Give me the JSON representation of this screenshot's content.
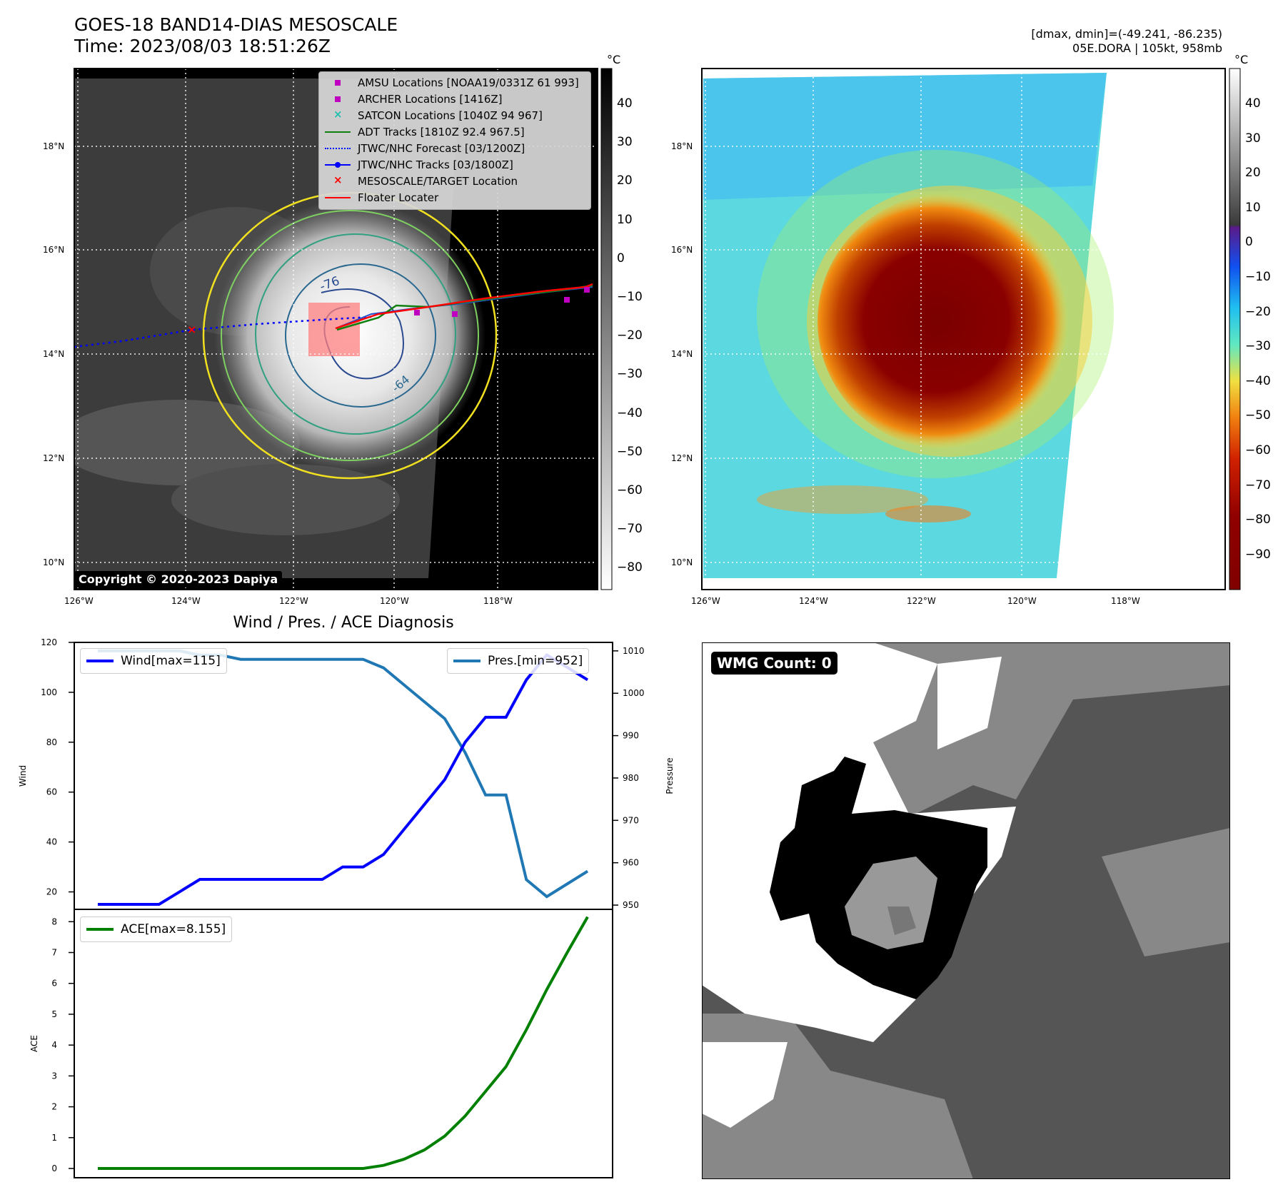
{
  "header": {
    "title_line1": "GOES-18 BAND14-DIAS MESOSCALE",
    "title_line2": "Time: 2023/08/03 18:51:26Z",
    "info_line1": "[dmax, dmin]=(-49.241, -86.235)",
    "info_line2": "05E.DORA | 105kt, 958mb"
  },
  "map_common": {
    "lon_ticks": [
      "126°W",
      "124°W",
      "122°W",
      "120°W",
      "118°W"
    ],
    "lat_ticks": [
      "18°N",
      "16°N",
      "14°N",
      "12°N",
      "10°N"
    ],
    "colorbar_unit": "°C"
  },
  "map_left": {
    "colorbar_ticks": [
      "40",
      "30",
      "20",
      "10",
      "0",
      "−10",
      "−20",
      "−30",
      "−40",
      "−50",
      "−60",
      "−70",
      "−80"
    ],
    "contour_labels": [
      "-76",
      "-64"
    ],
    "copyright": "Copyright © 2020-2023 Dapiya",
    "legend": [
      {
        "label": "AMSU Locations [NOAA19/0331Z 61 993]",
        "symbol": "square",
        "color": "#c000c0"
      },
      {
        "label": "ARCHER Locations [1416Z]",
        "symbol": "square",
        "color": "#c000c0"
      },
      {
        "label": "SATCON Locations [1040Z 94 967]",
        "symbol": "x",
        "color": "#20c0b0"
      },
      {
        "label": "ADT Tracks [1810Z 92.4 967.5]",
        "symbol": "line",
        "color": "#108010"
      },
      {
        "label": "JTWC/NHC Forecast [03/1200Z]",
        "symbol": "dotted",
        "color": "#0000ff"
      },
      {
        "label": "JTWC/NHC Tracks [03/1800Z]",
        "symbol": "line-dot",
        "color": "#0000ff"
      },
      {
        "label": "MESOSCALE/TARGET Location",
        "symbol": "x",
        "color": "#ff0000"
      },
      {
        "label": "Floater Locater",
        "symbol": "line",
        "color": "#ff0000"
      }
    ]
  },
  "map_right": {
    "colorbar_ticks": [
      "40",
      "30",
      "20",
      "10",
      "0",
      "−10",
      "−20",
      "−30",
      "−40",
      "−50",
      "−60",
      "−70",
      "−80",
      "−90"
    ]
  },
  "diagnosis": {
    "title": "Wind / Pres. / ACE Diagnosis",
    "wind_ylabel": "Wind",
    "pressure_ylabel": "Pressure",
    "ace_ylabel": "ACE",
    "wind_legend": "Wind[max=115]",
    "pres_legend": "Pres.[min=952]",
    "ace_legend": "ACE[max=8.155]",
    "wind_ticks": [
      "120",
      "100",
      "80",
      "60",
      "40",
      "20"
    ],
    "pres_ticks": [
      "1010",
      "1000",
      "990",
      "980",
      "970",
      "960",
      "950"
    ],
    "ace_ticks": [
      "8",
      "7",
      "6",
      "5",
      "4",
      "3",
      "2",
      "1",
      "0"
    ]
  },
  "wmg": {
    "badge": "WMG Count: 0"
  },
  "chart_data": [
    {
      "type": "line",
      "title": "Wind / Pres. / ACE Diagnosis",
      "x": [
        0,
        1,
        2,
        3,
        4,
        5,
        6,
        7,
        8,
        9,
        10,
        11,
        12,
        13,
        14,
        15,
        16,
        17,
        18,
        19,
        20,
        21,
        22,
        23,
        24
      ],
      "series": [
        {
          "name": "Wind[max=115]",
          "axis": "left",
          "color": "#0000ff",
          "values": [
            15,
            15,
            15,
            15,
            20,
            25,
            25,
            25,
            25,
            25,
            25,
            25,
            30,
            30,
            35,
            45,
            55,
            65,
            80,
            90,
            90,
            105,
            115,
            110,
            105
          ]
        },
        {
          "name": "Pres.[min=952]",
          "axis": "right",
          "color": "#1f77b4",
          "values": [
            1010,
            1010,
            1010,
            1010,
            1010,
            1009,
            1009,
            1008,
            1008,
            1008,
            1008,
            1008,
            1008,
            1008,
            1006,
            1002,
            998,
            994,
            986,
            976,
            976,
            956,
            952,
            955,
            958
          ]
        }
      ],
      "ylabel": "Wind",
      "ylim": [
        13,
        120
      ],
      "y2label": "Pressure",
      "y2lim": [
        949,
        1012
      ]
    },
    {
      "type": "line",
      "x": [
        0,
        1,
        2,
        3,
        4,
        5,
        6,
        7,
        8,
        9,
        10,
        11,
        12,
        13,
        14,
        15,
        16,
        17,
        18,
        19,
        20,
        21,
        22,
        23,
        24
      ],
      "series": [
        {
          "name": "ACE[max=8.155]",
          "color": "#008000",
          "values": [
            0,
            0,
            0,
            0,
            0,
            0,
            0,
            0,
            0,
            0,
            0,
            0,
            0,
            0,
            0.1,
            0.3,
            0.6,
            1.05,
            1.7,
            2.5,
            3.3,
            4.5,
            5.8,
            7.0,
            8.155
          ]
        }
      ],
      "ylabel": "ACE",
      "ylim": [
        -0.3,
        8.4
      ]
    }
  ]
}
